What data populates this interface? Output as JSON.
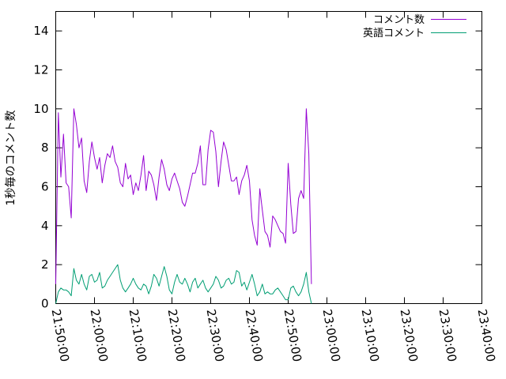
{
  "chart_data": {
    "type": "line",
    "title": "",
    "xlabel": "",
    "ylabel": "1秒毎のコメント数",
    "xlim": [
      "21:50:00",
      "23:40:00"
    ],
    "ylim": [
      0,
      15
    ],
    "xticks": [
      "21:50:00",
      "22:00:00",
      "22:10:00",
      "22:20:00",
      "22:30:00",
      "22:40:00",
      "22:50:00",
      "23:00:00",
      "23:10:00",
      "23:20:00",
      "23:30:00",
      "23:40:00"
    ],
    "yticks": [
      "0",
      "2",
      "4",
      "6",
      "8",
      "10",
      "12",
      "14"
    ],
    "grid": false,
    "legend_position": "top-right",
    "series": [
      {
        "name": "コメント数",
        "color": "#9400d3",
        "points": [
          [
            "21:50:00",
            1.0
          ],
          [
            "21:50:40",
            9.8
          ],
          [
            "21:51:20",
            6.5
          ],
          [
            "21:52:00",
            8.7
          ],
          [
            "21:52:40",
            6.2
          ],
          [
            "21:53:20",
            6.0
          ],
          [
            "21:54:00",
            4.4
          ],
          [
            "21:54:40",
            10.0
          ],
          [
            "21:55:20",
            9.2
          ],
          [
            "21:56:00",
            8.0
          ],
          [
            "21:56:40",
            8.5
          ],
          [
            "21:57:20",
            6.3
          ],
          [
            "21:58:00",
            5.7
          ],
          [
            "21:58:40",
            7.3
          ],
          [
            "21:59:20",
            8.3
          ],
          [
            "22:00:00",
            7.5
          ],
          [
            "22:00:40",
            6.9
          ],
          [
            "22:01:20",
            7.5
          ],
          [
            "22:02:00",
            6.2
          ],
          [
            "22:02:40",
            7.1
          ],
          [
            "22:03:20",
            7.7
          ],
          [
            "22:04:00",
            7.5
          ],
          [
            "22:04:40",
            8.1
          ],
          [
            "22:05:20",
            7.3
          ],
          [
            "22:06:00",
            7.0
          ],
          [
            "22:06:40",
            6.2
          ],
          [
            "22:07:20",
            6.0
          ],
          [
            "22:08:00",
            7.2
          ],
          [
            "22:08:40",
            6.4
          ],
          [
            "22:09:20",
            6.6
          ],
          [
            "22:10:00",
            5.6
          ],
          [
            "22:10:40",
            6.2
          ],
          [
            "22:11:20",
            5.8
          ],
          [
            "22:12:00",
            6.6
          ],
          [
            "22:12:40",
            7.6
          ],
          [
            "22:13:20",
            5.8
          ],
          [
            "22:14:00",
            6.8
          ],
          [
            "22:14:40",
            6.6
          ],
          [
            "22:15:20",
            6.1
          ],
          [
            "22:16:00",
            5.3
          ],
          [
            "22:16:40",
            6.5
          ],
          [
            "22:17:20",
            7.4
          ],
          [
            "22:18:00",
            6.9
          ],
          [
            "22:18:40",
            6.1
          ],
          [
            "22:19:20",
            5.8
          ],
          [
            "22:20:00",
            6.4
          ],
          [
            "22:20:40",
            6.7
          ],
          [
            "22:21:20",
            6.3
          ],
          [
            "22:22:00",
            5.9
          ],
          [
            "22:22:40",
            5.2
          ],
          [
            "22:23:20",
            5.0
          ],
          [
            "22:24:00",
            5.5
          ],
          [
            "22:24:40",
            6.1
          ],
          [
            "22:25:20",
            6.7
          ],
          [
            "22:26:00",
            6.7
          ],
          [
            "22:26:40",
            7.2
          ],
          [
            "22:27:20",
            8.1
          ],
          [
            "22:28:00",
            6.1
          ],
          [
            "22:28:40",
            6.1
          ],
          [
            "22:29:20",
            7.9
          ],
          [
            "22:30:00",
            8.9
          ],
          [
            "22:30:40",
            8.8
          ],
          [
            "22:31:20",
            7.8
          ],
          [
            "22:32:00",
            6.0
          ],
          [
            "22:32:40",
            7.3
          ],
          [
            "22:33:20",
            8.3
          ],
          [
            "22:34:00",
            7.9
          ],
          [
            "22:34:40",
            7.1
          ],
          [
            "22:35:20",
            6.3
          ],
          [
            "22:36:00",
            6.3
          ],
          [
            "22:36:40",
            6.5
          ],
          [
            "22:37:20",
            5.6
          ],
          [
            "22:38:00",
            6.3
          ],
          [
            "22:38:40",
            6.6
          ],
          [
            "22:39:20",
            7.1
          ],
          [
            "22:40:00",
            6.3
          ],
          [
            "22:40:40",
            4.3
          ],
          [
            "22:41:20",
            3.5
          ],
          [
            "22:42:00",
            3.0
          ],
          [
            "22:42:40",
            5.9
          ],
          [
            "22:43:20",
            4.8
          ],
          [
            "22:44:00",
            3.7
          ],
          [
            "22:44:40",
            3.5
          ],
          [
            "22:45:20",
            2.9
          ],
          [
            "22:46:00",
            4.5
          ],
          [
            "22:46:40",
            4.3
          ],
          [
            "22:47:20",
            4.0
          ],
          [
            "22:48:00",
            3.7
          ],
          [
            "22:48:40",
            3.6
          ],
          [
            "22:49:20",
            3.1
          ],
          [
            "22:50:00",
            7.2
          ],
          [
            "22:50:40",
            5.1
          ],
          [
            "22:51:20",
            3.6
          ],
          [
            "22:52:00",
            3.7
          ],
          [
            "22:52:40",
            5.4
          ],
          [
            "22:53:20",
            5.8
          ],
          [
            "22:54:00",
            5.4
          ],
          [
            "22:54:40",
            10.0
          ],
          [
            "22:55:20",
            7.7
          ],
          [
            "22:56:00",
            1.0
          ]
        ]
      },
      {
        "name": "英語コメント",
        "color": "#009e73",
        "points": [
          [
            "21:50:00",
            0.0
          ],
          [
            "21:50:40",
            0.6
          ],
          [
            "21:51:20",
            0.8
          ],
          [
            "21:52:00",
            0.7
          ],
          [
            "21:52:40",
            0.7
          ],
          [
            "21:53:20",
            0.6
          ],
          [
            "21:54:00",
            0.4
          ],
          [
            "21:54:40",
            1.8
          ],
          [
            "21:55:20",
            1.2
          ],
          [
            "21:56:00",
            1.0
          ],
          [
            "21:56:40",
            1.5
          ],
          [
            "21:57:20",
            1.0
          ],
          [
            "21:58:00",
            0.7
          ],
          [
            "21:58:40",
            1.4
          ],
          [
            "21:59:20",
            1.5
          ],
          [
            "22:00:00",
            1.1
          ],
          [
            "22:00:40",
            1.2
          ],
          [
            "22:01:20",
            1.6
          ],
          [
            "22:02:00",
            0.8
          ],
          [
            "22:02:40",
            0.9
          ],
          [
            "22:03:20",
            1.2
          ],
          [
            "22:04:00",
            1.4
          ],
          [
            "22:04:40",
            1.6
          ],
          [
            "22:05:20",
            1.8
          ],
          [
            "22:06:00",
            2.0
          ],
          [
            "22:06:40",
            1.2
          ],
          [
            "22:07:20",
            0.8
          ],
          [
            "22:08:00",
            0.6
          ],
          [
            "22:08:40",
            0.8
          ],
          [
            "22:09:20",
            1.0
          ],
          [
            "22:10:00",
            1.3
          ],
          [
            "22:10:40",
            1.0
          ],
          [
            "22:11:20",
            0.8
          ],
          [
            "22:12:00",
            0.7
          ],
          [
            "22:12:40",
            1.0
          ],
          [
            "22:13:20",
            0.9
          ],
          [
            "22:14:00",
            0.5
          ],
          [
            "22:14:40",
            0.9
          ],
          [
            "22:15:20",
            1.5
          ],
          [
            "22:16:00",
            1.3
          ],
          [
            "22:16:40",
            0.9
          ],
          [
            "22:17:20",
            1.4
          ],
          [
            "22:18:00",
            1.9
          ],
          [
            "22:18:40",
            1.4
          ],
          [
            "22:19:20",
            0.7
          ],
          [
            "22:20:00",
            0.5
          ],
          [
            "22:20:40",
            1.1
          ],
          [
            "22:21:20",
            1.5
          ],
          [
            "22:22:00",
            1.1
          ],
          [
            "22:22:40",
            1.0
          ],
          [
            "22:23:20",
            1.3
          ],
          [
            "22:24:00",
            1.0
          ],
          [
            "22:24:40",
            0.6
          ],
          [
            "22:25:20",
            1.1
          ],
          [
            "22:26:00",
            1.3
          ],
          [
            "22:26:40",
            0.8
          ],
          [
            "22:27:20",
            1.0
          ],
          [
            "22:28:00",
            1.2
          ],
          [
            "22:28:40",
            0.8
          ],
          [
            "22:29:20",
            0.6
          ],
          [
            "22:30:00",
            0.8
          ],
          [
            "22:30:40",
            1.0
          ],
          [
            "22:31:20",
            1.4
          ],
          [
            "22:32:00",
            1.2
          ],
          [
            "22:32:40",
            0.8
          ],
          [
            "22:33:20",
            0.9
          ],
          [
            "22:34:00",
            1.2
          ],
          [
            "22:34:40",
            1.3
          ],
          [
            "22:35:20",
            1.0
          ],
          [
            "22:36:00",
            1.1
          ],
          [
            "22:36:40",
            1.7
          ],
          [
            "22:37:20",
            1.6
          ],
          [
            "22:38:00",
            0.9
          ],
          [
            "22:38:40",
            1.1
          ],
          [
            "22:39:20",
            0.7
          ],
          [
            "22:40:00",
            1.1
          ],
          [
            "22:40:40",
            1.5
          ],
          [
            "22:41:20",
            1.0
          ],
          [
            "22:42:00",
            0.4
          ],
          [
            "22:42:40",
            0.6
          ],
          [
            "22:43:20",
            1.0
          ],
          [
            "22:44:00",
            0.5
          ],
          [
            "22:44:40",
            0.6
          ],
          [
            "22:45:20",
            0.5
          ],
          [
            "22:46:00",
            0.5
          ],
          [
            "22:46:40",
            0.7
          ],
          [
            "22:47:20",
            0.8
          ],
          [
            "22:48:00",
            0.6
          ],
          [
            "22:48:40",
            0.4
          ],
          [
            "22:49:20",
            0.2
          ],
          [
            "22:50:00",
            0.2
          ],
          [
            "22:50:40",
            0.8
          ],
          [
            "22:51:20",
            0.9
          ],
          [
            "22:52:00",
            0.6
          ],
          [
            "22:52:40",
            0.4
          ],
          [
            "22:53:20",
            0.6
          ],
          [
            "22:54:00",
            1.0
          ],
          [
            "22:54:40",
            1.6
          ],
          [
            "22:55:20",
            0.6
          ],
          [
            "22:56:00",
            0.0
          ]
        ]
      }
    ]
  }
}
